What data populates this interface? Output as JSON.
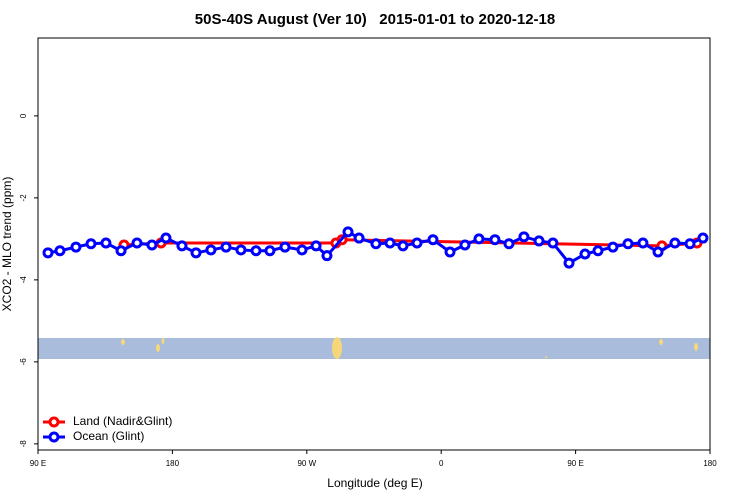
{
  "chart_data": {
    "type": "line",
    "title": "50S-40S August (Ver 10)   2015-01-01 to 2020-12-18",
    "xlabel": "Longitude (deg E)",
    "ylabel": "XCO2 - MLO trend (ppm)",
    "xlim": [
      90,
      540
    ],
    "xticks": [
      {
        "value": 90,
        "label": "90 E"
      },
      {
        "value": 180,
        "label": "180"
      },
      {
        "value": 270,
        "label": "90 W"
      },
      {
        "value": 360,
        "label": "0"
      },
      {
        "value": 450,
        "label": "90 E"
      },
      {
        "value": 540,
        "label": "180"
      }
    ],
    "ylim": [
      -8.15,
      1.9
    ],
    "yticks": [
      0,
      -2,
      -4,
      -6,
      -8
    ],
    "legend": "bottom-left",
    "series": [
      {
        "name": "Land (Nadir&Glint)",
        "color": "#ff0000",
        "x": [
          147.6,
          172.4,
          289.5,
          293.6,
          507.8,
          531.3
        ],
        "values": [
          -3.15,
          -3.1,
          -3.1,
          -3.02,
          -3.17,
          -3.1
        ]
      },
      {
        "name": "Ocean (Glint)",
        "color": "#0000ff",
        "x": [
          96.7,
          104.7,
          115.4,
          125.5,
          135.5,
          145.6,
          156.3,
          166.3,
          175.7,
          186.4,
          195.8,
          205.8,
          215.9,
          225.9,
          236.0,
          245.3,
          255.4,
          266.8,
          276.2,
          283.5,
          297.6,
          305.0,
          316.3,
          325.7,
          334.4,
          343.8,
          354.5,
          365.9,
          375.9,
          385.3,
          396.0,
          405.4,
          415.4,
          425.5,
          434.8,
          445.6,
          456.3,
          465.0,
          475.0,
          485.1,
          495.1,
          505.2,
          516.5,
          526.6,
          535.3
        ],
        "values": [
          -3.34,
          -3.29,
          -3.2,
          -3.12,
          -3.1,
          -3.29,
          -3.1,
          -3.15,
          -2.98,
          -3.17,
          -3.34,
          -3.27,
          -3.2,
          -3.27,
          -3.29,
          -3.29,
          -3.2,
          -3.27,
          -3.17,
          -3.41,
          -2.83,
          -2.98,
          -3.12,
          -3.1,
          -3.17,
          -3.1,
          -3.02,
          -3.32,
          -3.15,
          -3.0,
          -3.02,
          -3.12,
          -2.95,
          -3.05,
          -3.1,
          -3.59,
          -3.37,
          -3.29,
          -3.2,
          -3.12,
          -3.1,
          -3.32,
          -3.1,
          -3.12,
          -2.98
        ]
      }
    ]
  }
}
